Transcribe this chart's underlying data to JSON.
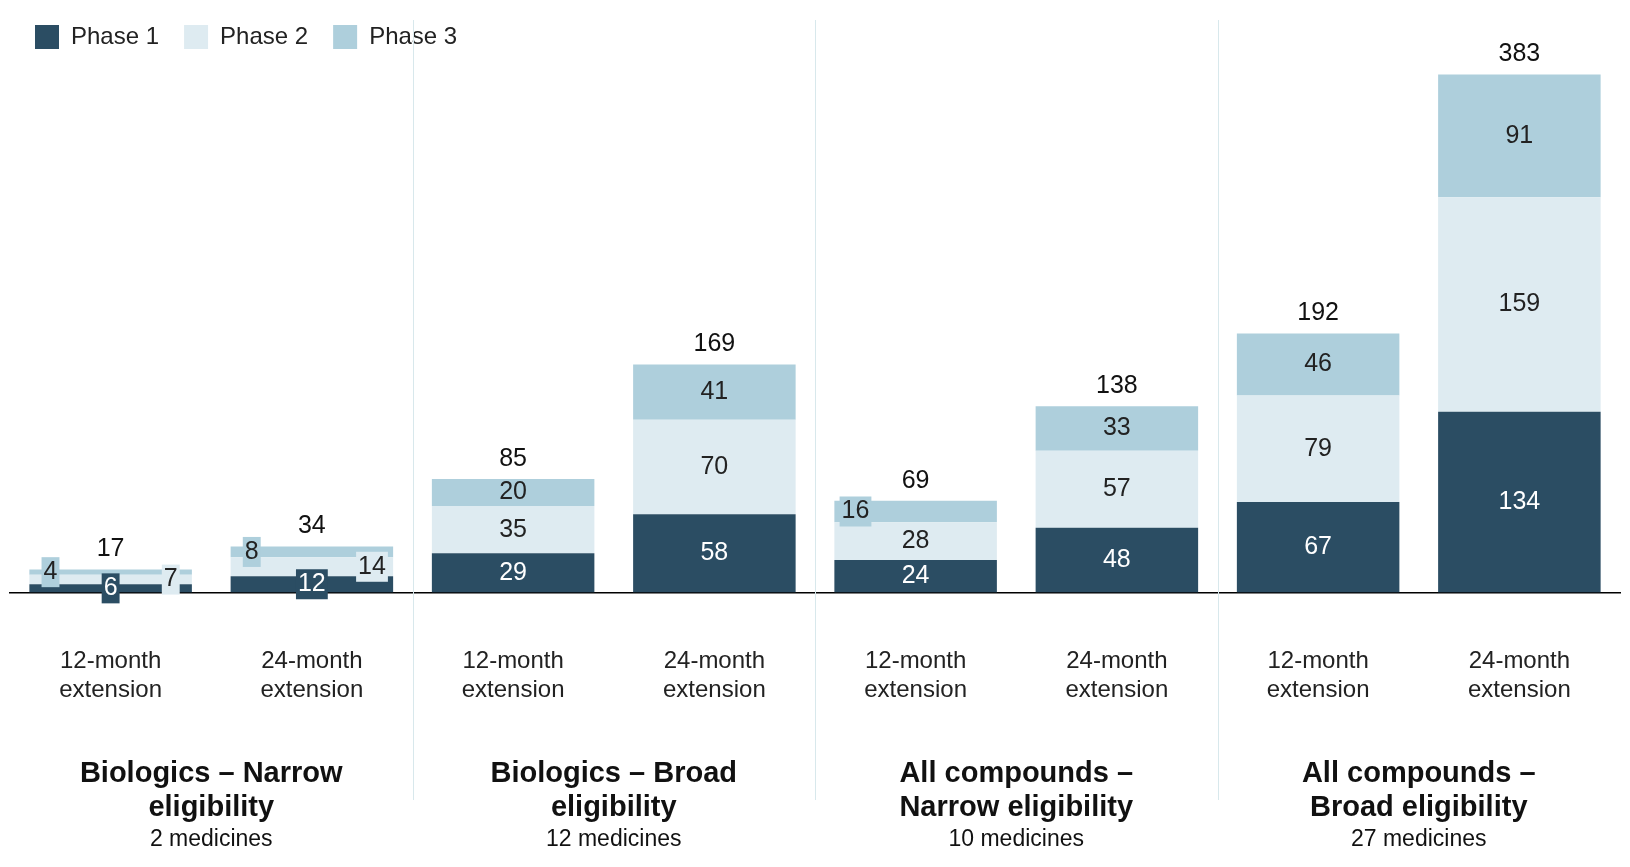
{
  "chart_data": {
    "type": "bar",
    "stacked": true,
    "data_labels": true,
    "legend": "top left",
    "grid": false,
    "categories": [
      "12-month extension",
      "24-month extension",
      "12-month extension",
      "24-month extension",
      "12-month extension",
      "24-month extension",
      "12-month extension",
      "24-month extension"
    ],
    "series": [
      {
        "name": "Phase 1",
        "color": "#2b4d63",
        "values": [
          6,
          12,
          29,
          58,
          24,
          48,
          67,
          134
        ]
      },
      {
        "name": "Phase 2",
        "color": "#deebf1",
        "values": [
          7,
          14,
          35,
          70,
          28,
          57,
          79,
          159
        ]
      },
      {
        "name": "Phase 3",
        "color": "#aecfdc",
        "values": [
          4,
          8,
          20,
          41,
          16,
          33,
          46,
          91
        ]
      }
    ],
    "totals": [
      "17",
      "34",
      "85",
      "169",
      "69",
      "138",
      "192",
      "383"
    ],
    "annotations": [
      "Biologics – Narrow eligibility",
      "2 medicines",
      "Biologics – Broad eligibility",
      "12 medicines",
      "All compounds – Narrow eligibility",
      "10 medicines",
      "All compounds – Broad eligibility",
      "27 medicines"
    ]
  }
}
